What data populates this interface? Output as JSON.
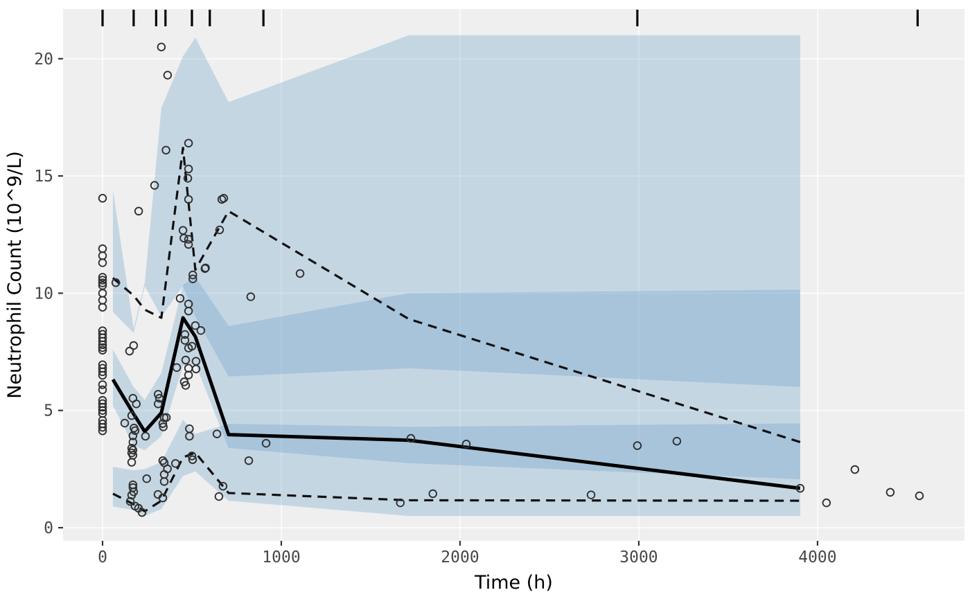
{
  "figure": {
    "x_axis": {
      "label": "Time (h)",
      "ticks": [
        0,
        1000,
        2000,
        3000,
        4000
      ]
    },
    "y_axis": {
      "label": "Neutrophil Count (10^9/L)",
      "ticks": [
        0,
        5,
        10,
        15,
        20
      ]
    }
  },
  "chart_data": {
    "type": "line",
    "title": "",
    "xlabel": "Time (h)",
    "ylabel": "Neutrophil Count (10^9/L)",
    "xlim": [
      -221,
      4822
    ],
    "ylim": [
      -0.56,
      22.12
    ],
    "x_ticks": [
      0,
      1000,
      2000,
      3000,
      4000
    ],
    "y_ticks": [
      0,
      5,
      10,
      15,
      20
    ],
    "grid": "major-only-white-on-gray-panel",
    "legend": "none",
    "bin_times": [
      58,
      174,
      236,
      329,
      450,
      519,
      705,
      1713,
      3903
    ],
    "series": [
      {
        "name": "observed-median",
        "style": "solid",
        "values": [
          6.32,
          4.85,
          4.1,
          4.9,
          8.95,
          8.15,
          3.97,
          3.73,
          1.68
        ]
      },
      {
        "name": "observed-95th-percentile",
        "style": "dashed",
        "values": [
          10.65,
          9.9,
          9.3,
          8.95,
          16.2,
          11.0,
          13.5,
          8.9,
          3.65
        ]
      },
      {
        "name": "observed-5th-percentile",
        "style": "dashed",
        "values": [
          1.45,
          1.0,
          0.7,
          1.15,
          3.0,
          3.2,
          1.48,
          1.17,
          1.15
        ]
      }
    ],
    "ribbons": [
      {
        "name": "sim-ci-95th-percentile",
        "hi": [
          14.4,
          8.5,
          10.45,
          17.9,
          20.1,
          20.9,
          18.15,
          21.0,
          21.0
        ],
        "lo": [
          9.2,
          8.3,
          10.3,
          9.0,
          10.3,
          9.0,
          6.45,
          6.8,
          6.0
        ]
      },
      {
        "name": "sim-ci-median",
        "hi": [
          7.6,
          6.0,
          5.45,
          6.6,
          10.35,
          10.7,
          8.6,
          10.0,
          10.15
        ],
        "lo": [
          5.2,
          3.5,
          3.3,
          3.9,
          6.9,
          7.0,
          3.4,
          2.75,
          2.07
        ]
      },
      {
        "name": "sim-ci-5th-percentile",
        "hi": [
          2.6,
          2.45,
          2.5,
          2.8,
          4.6,
          4.0,
          4.43,
          4.3,
          4.45
        ],
        "lo": [
          0.9,
          0.75,
          0.5,
          0.8,
          2.2,
          2.4,
          1.15,
          0.5,
          0.5
        ]
      }
    ],
    "rug_times": [
      0,
      174,
      300,
      352,
      500,
      600,
      900,
      2992,
      4560
    ],
    "observations": [
      [
        0,
        14.05
      ],
      [
        0,
        11.9
      ],
      [
        0,
        11.6
      ],
      [
        0,
        11.3
      ],
      [
        0,
        10.68
      ],
      [
        0,
        10.56
      ],
      [
        0,
        10.44
      ],
      [
        0,
        10.33
      ],
      [
        0,
        10.0
      ],
      [
        0,
        9.7
      ],
      [
        0,
        9.4
      ],
      [
        0,
        8.4
      ],
      [
        0,
        8.25
      ],
      [
        0,
        8.1
      ],
      [
        0,
        7.95
      ],
      [
        0,
        7.8
      ],
      [
        0,
        7.68
      ],
      [
        0,
        7.57
      ],
      [
        0,
        6.95
      ],
      [
        0,
        6.8
      ],
      [
        0,
        6.65
      ],
      [
        0,
        6.5
      ],
      [
        0,
        6.1
      ],
      [
        0,
        5.88
      ],
      [
        0,
        5.43
      ],
      [
        0,
        5.29
      ],
      [
        0,
        5.14
      ],
      [
        0,
        5.0
      ],
      [
        0,
        4.87
      ],
      [
        0,
        4.58
      ],
      [
        0,
        4.43
      ],
      [
        0,
        4.28
      ],
      [
        0,
        4.13
      ],
      [
        74,
        10.45
      ],
      [
        124,
        4.46
      ],
      [
        151,
        7.53
      ],
      [
        155,
        1.12
      ],
      [
        163,
        4.78
      ],
      [
        163,
        3.39
      ],
      [
        163,
        3.19
      ],
      [
        163,
        2.79
      ],
      [
        163,
        1.39
      ],
      [
        170,
        5.52
      ],
      [
        170,
        3.92
      ],
      [
        170,
        3.65
      ],
      [
        170,
        3.31
      ],
      [
        170,
        3.09
      ],
      [
        170,
        1.83
      ],
      [
        170,
        1.71
      ],
      [
        174,
        7.77
      ],
      [
        174,
        1.53
      ],
      [
        176,
        4.25
      ],
      [
        182,
        4.14
      ],
      [
        182,
        0.92
      ],
      [
        189,
        5.28
      ],
      [
        201,
        0.83
      ],
      [
        202,
        13.5
      ],
      [
        221,
        0.65
      ],
      [
        240,
        3.9
      ],
      [
        247,
        2.09
      ],
      [
        291,
        14.6
      ],
      [
        310,
        1.42
      ],
      [
        311,
        5.69
      ],
      [
        311,
        5.28
      ],
      [
        318,
        5.52
      ],
      [
        329,
        20.5
      ],
      [
        337,
        4.44
      ],
      [
        337,
        2.86
      ],
      [
        337,
        1.27
      ],
      [
        340,
        4.3
      ],
      [
        345,
        4.69
      ],
      [
        345,
        2.77
      ],
      [
        345,
        2.27
      ],
      [
        345,
        1.97
      ],
      [
        355,
        16.1
      ],
      [
        357,
        4.7
      ],
      [
        363,
        2.51
      ],
      [
        364,
        19.3
      ],
      [
        408,
        2.74
      ],
      [
        415,
        6.83
      ],
      [
        434,
        9.78
      ],
      [
        450,
        12.68
      ],
      [
        455,
        12.35
      ],
      [
        457,
        6.22
      ],
      [
        461,
        8.24
      ],
      [
        461,
        7.99
      ],
      [
        465,
        7.15
      ],
      [
        465,
        6.07
      ],
      [
        477,
        14.9
      ],
      [
        481,
        16.4
      ],
      [
        481,
        15.3
      ],
      [
        481,
        14.0
      ],
      [
        481,
        12.3
      ],
      [
        481,
        12.08
      ],
      [
        481,
        9.54
      ],
      [
        481,
        9.24
      ],
      [
        481,
        7.66
      ],
      [
        481,
        6.8
      ],
      [
        481,
        6.51
      ],
      [
        486,
        4.22
      ],
      [
        486,
        3.9
      ],
      [
        500,
        7.74
      ],
      [
        500,
        3.06
      ],
      [
        504,
        2.9
      ],
      [
        505,
        10.78
      ],
      [
        505,
        10.61
      ],
      [
        519,
        8.62
      ],
      [
        523,
        7.1
      ],
      [
        523,
        6.77
      ],
      [
        550,
        8.41
      ],
      [
        573,
        11.05
      ],
      [
        576,
        11.08
      ],
      [
        640,
        4.0
      ],
      [
        651,
        1.33
      ],
      [
        655,
        12.7
      ],
      [
        667,
        14.0
      ],
      [
        674,
        1.77
      ],
      [
        678,
        14.05
      ],
      [
        818,
        2.86
      ],
      [
        829,
        9.85
      ],
      [
        915,
        3.6
      ],
      [
        1105,
        10.84
      ],
      [
        1666,
        1.06
      ],
      [
        1725,
        3.81
      ],
      [
        1848,
        1.45
      ],
      [
        2035,
        3.57
      ],
      [
        2733,
        1.4
      ],
      [
        2992,
        3.5
      ],
      [
        3213,
        3.69
      ],
      [
        3903,
        1.68
      ],
      [
        4050,
        1.06
      ],
      [
        4209,
        2.48
      ],
      [
        4407,
        1.51
      ],
      [
        4570,
        1.36
      ]
    ],
    "colors": {
      "ribbon": "#5B97C7",
      "ribbon_opacity": 0.28,
      "median_line": "#000000",
      "percentile_line": "#111111",
      "point_stroke": "#303030",
      "panel_bg": "#EFEFEF",
      "grid_line": "#FFFFFF",
      "tick_mark": "#333333",
      "tick_label": "#474747",
      "axis_title": "#000000",
      "rug": "#000000"
    }
  }
}
